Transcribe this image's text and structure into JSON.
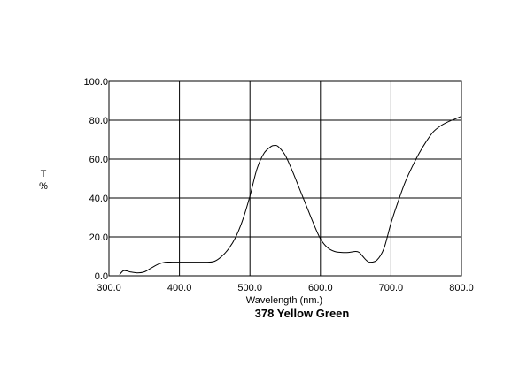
{
  "chart_data": {
    "type": "line",
    "title": "378 Yellow Green",
    "xlabel": "Wavelength (nm.)",
    "ylabel": "T\n%",
    "xlim": [
      300,
      800
    ],
    "ylim": [
      0,
      100
    ],
    "xticks": [
      "300.0",
      "400.0",
      "500.0",
      "600.0",
      "700.0",
      "800.0"
    ],
    "yticks": [
      "0.0",
      "20.0",
      "40.0",
      "60.0",
      "80.0",
      "100.0"
    ],
    "grid": true,
    "series": [
      {
        "color": "#000000",
        "x": [
          315,
          320,
          325,
          330,
          340,
          350,
          360,
          370,
          380,
          390,
          400,
          420,
          440,
          450,
          460,
          470,
          480,
          490,
          500,
          510,
          520,
          530,
          535,
          540,
          550,
          560,
          570,
          580,
          590,
          600,
          610,
          620,
          630,
          640,
          650,
          655,
          660,
          665,
          670,
          680,
          690,
          700,
          710,
          720,
          730,
          740,
          750,
          760,
          770,
          780,
          790,
          800
        ],
        "y": [
          0.5,
          2.5,
          2.5,
          2.0,
          1.5,
          2.0,
          4.0,
          6.0,
          7.0,
          7.0,
          7.0,
          7.0,
          7.0,
          7.5,
          10.0,
          14.0,
          20.0,
          29.0,
          41.0,
          55.0,
          63.0,
          66.5,
          67.0,
          66.5,
          62.0,
          54.0,
          45.0,
          36.0,
          27.0,
          19.0,
          14.5,
          12.5,
          12.0,
          12.0,
          12.5,
          12.0,
          10.0,
          8.0,
          7.0,
          8.0,
          14.0,
          27.0,
          38.0,
          48.0,
          56.0,
          63.0,
          69.0,
          74.0,
          77.0,
          79.0,
          80.5,
          82.0
        ]
      }
    ]
  }
}
